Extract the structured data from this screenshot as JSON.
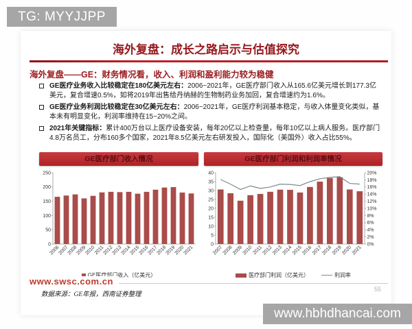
{
  "badges": {
    "tg": "TG: MYYJJPP",
    "bottom_watermark": "www.hbhdhancai.com"
  },
  "header": {
    "title": "海外复盘：成长之路启示与估值探究",
    "subtitle": "海外复盘——GE：财务情况看，收入、利润和盈利能力较为稳健"
  },
  "bullets": [
    {
      "lead": "GE医疗业务收入比较稳定在180亿美元左右：",
      "text": "2006~2021年，GE医疗部门收入从165.6亿美元增长到177.3亿美元，复合增速0.5%，如将2019年出售给丹纳赫的生物制药业务加回，复合增速约为1.6%。"
    },
    {
      "lead": "GE医疗业务利润比较稳定在30亿美元左右：",
      "text": "2006~2021年，GE医疗利润基本稳定，与收入体量变化类似，基本未有明显变化，利润率维持在15~20%之间。"
    },
    {
      "lead": "2021年关键指标：",
      "text": "累计400万台以上医疗设备安装，每年20亿以上检查量，每年10亿以上病人服务。医疗部门4.8万名员工，分布160多个国家，2021年8.5亿美元左右研发投入，国际化（美国外）收入占比55%。"
    }
  ],
  "chart_data": [
    {
      "type": "bar",
      "title": "GE医疗部门收入情况",
      "categories": [
        "2006",
        "2007",
        "2008",
        "2009",
        "2010",
        "2011",
        "2012",
        "2013",
        "2014",
        "2015",
        "2016",
        "2017",
        "2018",
        "2019",
        "2020",
        "2021"
      ],
      "values": [
        165.6,
        170,
        174,
        160,
        169,
        181,
        183,
        182,
        183,
        176.5,
        183,
        190.5,
        198,
        199.5,
        180.5,
        177.3
      ],
      "legend": [
        "GE医疗部门收入（亿美元）"
      ],
      "ylim_left": [
        0,
        250
      ],
      "yticks_left": [
        0,
        50,
        100,
        150,
        200,
        250
      ],
      "bar_color": "#a94c4a",
      "grid": false,
      "legend_position": "bottom"
    },
    {
      "type": "bar+line",
      "title": "GE医疗部门利润和利润率情况",
      "categories": [
        "2007",
        "2008",
        "2009",
        "2010",
        "2011",
        "2012",
        "2013",
        "2014",
        "2015",
        "2016",
        "2017",
        "2018",
        "2019",
        "2020",
        "2021"
      ],
      "series": [
        {
          "name": "医疗部门利润（亿美元）",
          "type": "bar",
          "axis": "left",
          "values": [
            30.6,
            28.5,
            24.3,
            27.4,
            28.1,
            29.3,
            30.5,
            30.4,
            28.9,
            32,
            35,
            37,
            37.5,
            30.6,
            29.6
          ]
        },
        {
          "name": "利润率",
          "type": "line",
          "axis": "right",
          "values": [
            18.1,
            16.8,
            15.3,
            16.3,
            15.6,
            16.0,
            16.8,
            16.7,
            16.4,
            17.5,
            18.3,
            18.7,
            18.9,
            17.0,
            16.8
          ]
        }
      ],
      "ylim_left": [
        0,
        40
      ],
      "yticks_left": [
        0,
        5,
        10,
        15,
        20,
        25,
        30,
        35,
        40
      ],
      "ylim_right": [
        0,
        20
      ],
      "yticks_right": [
        "0%",
        "2%",
        "4%",
        "6%",
        "8%",
        "10%",
        "12%",
        "14%",
        "16%",
        "18%",
        "20%"
      ],
      "bar_color": "#a94c4a",
      "line_color": "#7b8a8f",
      "grid": false,
      "legend_position": "bottom"
    }
  ],
  "footer": {
    "watermark": "www.swsc.com.cn",
    "source": "数据来源：GE年报，西南证券整理",
    "page": "55"
  },
  "colors": {
    "accent_red": "#b01f24",
    "banner_red": "#b4282d",
    "bar_brick": "#a94c4a",
    "margin_line_gray": "#7b8a8f",
    "badge_gray": "#a6a6a6"
  }
}
